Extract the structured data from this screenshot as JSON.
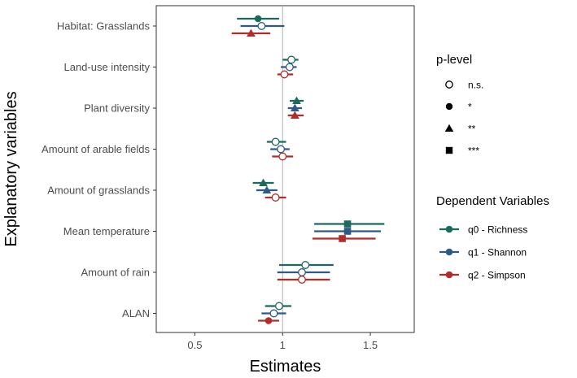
{
  "chart_data": {
    "type": "scatter",
    "subtype": "forest-plot-with-error-bars",
    "xlabel": "Estimates",
    "ylabel": "Explanatory variables",
    "xlim": [
      0.28,
      1.75
    ],
    "xticks": [
      0.5,
      1.0,
      1.5
    ],
    "xtick_labels": [
      "0.5",
      "1",
      "1.5"
    ],
    "reference_line": 1.0,
    "grid": false,
    "categories": [
      "Habitat: Grasslands",
      "Land-use intensity",
      "Plant diversity",
      "Amount of arable fields",
      "Amount of grasslands",
      "Mean temperature",
      "Amount of rain",
      "ALAN"
    ],
    "series": [
      {
        "name": "q0 - Richness",
        "color": "#1a6b5c",
        "estimate": [
          0.86,
          1.05,
          1.08,
          0.96,
          0.89,
          1.37,
          1.13,
          0.98
        ],
        "ci_low": [
          0.74,
          1.0,
          1.04,
          0.91,
          0.83,
          1.18,
          0.98,
          0.9
        ],
        "ci_high": [
          0.98,
          1.09,
          1.12,
          1.02,
          0.95,
          1.58,
          1.29,
          1.05
        ],
        "plevel": [
          "*",
          "n.s.",
          "**",
          "n.s.",
          "**",
          "***",
          "n.s.",
          "n.s."
        ]
      },
      {
        "name": "q1 - Shannon",
        "color": "#2e5a88",
        "estimate": [
          0.88,
          1.04,
          1.07,
          0.99,
          0.91,
          1.37,
          1.11,
          0.95
        ],
        "ci_low": [
          0.76,
          0.99,
          1.03,
          0.93,
          0.85,
          1.18,
          0.97,
          0.88
        ],
        "ci_high": [
          1.01,
          1.08,
          1.11,
          1.04,
          0.97,
          1.56,
          1.27,
          1.02
        ],
        "plevel": [
          "n.s.",
          "n.s.",
          "**",
          "n.s.",
          "**",
          "***",
          "n.s.",
          "n.s."
        ]
      },
      {
        "name": "q2 - Simpson",
        "color": "#b22c28",
        "estimate": [
          0.82,
          1.01,
          1.07,
          1.0,
          0.96,
          1.34,
          1.11,
          0.92
        ],
        "ci_low": [
          0.71,
          0.97,
          1.03,
          0.94,
          0.9,
          1.17,
          0.97,
          0.86
        ],
        "ci_high": [
          0.93,
          1.06,
          1.12,
          1.06,
          1.02,
          1.53,
          1.27,
          0.98
        ],
        "plevel": [
          "**",
          "n.s.",
          "**",
          "n.s.",
          "n.s.",
          "***",
          "n.s.",
          "*"
        ]
      }
    ],
    "legends": {
      "plevel": {
        "title": "p-level",
        "placement": "right",
        "items": [
          {
            "label": "n.s.",
            "shape": "open-circle"
          },
          {
            "label": "*",
            "shape": "filled-circle"
          },
          {
            "label": "**",
            "shape": "triangle"
          },
          {
            "label": "***",
            "shape": "square"
          }
        ]
      },
      "dependent": {
        "title": "Dependent Variables",
        "placement": "right",
        "items": [
          "q0 - Richness",
          "q1 - Shannon",
          "q2 - Simpson"
        ]
      }
    }
  }
}
